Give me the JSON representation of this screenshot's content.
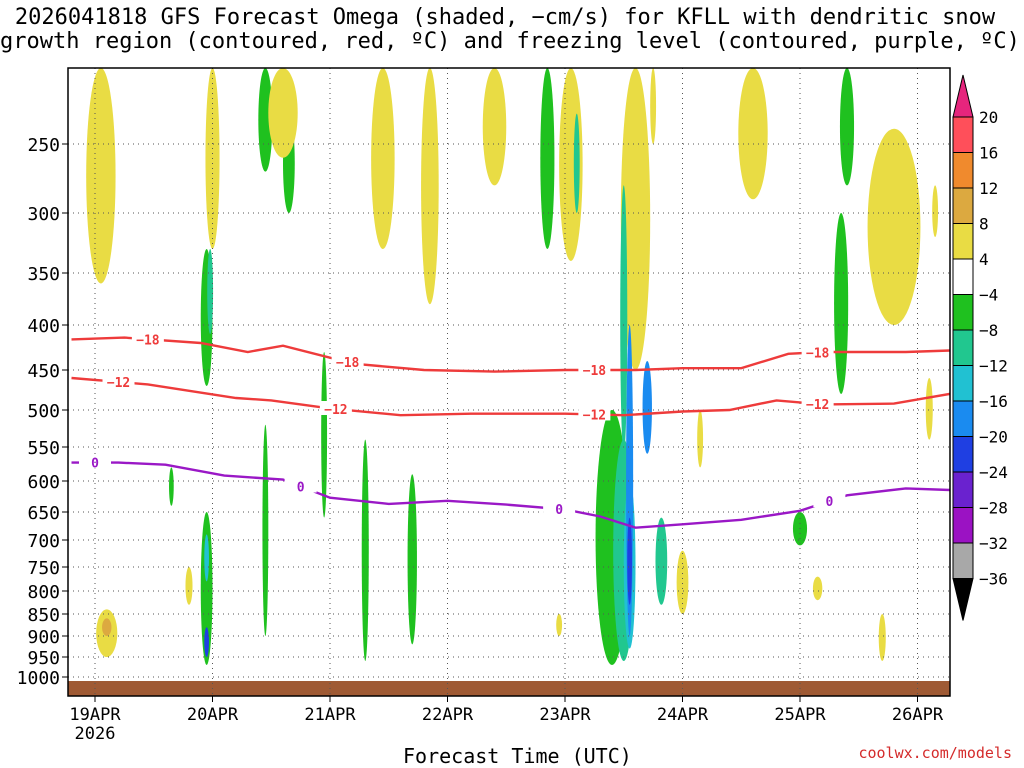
{
  "title_line1": "2026041818 GFS Forecast Omega (shaded, −cm/s) for KFLL with dendritic snow",
  "title_line2": "growth region (contoured, red, ºC) and freezing level (contoured, purple, ºC)",
  "credit": "coolwx.com/models",
  "chart_data": {
    "type": "heatmap",
    "title": "2026041818 GFS Forecast Omega (shaded, −cm/s) for KFLL with dendritic snow growth region (contoured, red, ºC) and freezing level (contoured, purple, ºC)",
    "xlabel": "Forecast Time (UTC)",
    "ylabel": "",
    "x_ticks": [
      "19APR",
      "20APR",
      "21APR",
      "22APR",
      "23APR",
      "24APR",
      "25APR",
      "26APR"
    ],
    "x_year": "2026",
    "x_range_days": [
      -0.2,
      7.35
    ],
    "y_ticks": [
      250,
      300,
      350,
      400,
      450,
      500,
      550,
      600,
      650,
      700,
      750,
      800,
      850,
      900,
      950,
      1000
    ],
    "y_range_hpa": [
      200,
      1015
    ],
    "colorbar": {
      "labels": [
        "20",
        "16",
        "12",
        "8",
        "4",
        "−4",
        "−8",
        "−12",
        "−16",
        "−20",
        "−24",
        "−28",
        "−32",
        "−36"
      ],
      "colors": [
        "#ff4f5a",
        "#f08a2d",
        "#dca940",
        "#e9dc44",
        "#ffffff",
        "#1fc11f",
        "#21c78f",
        "#21c1d2",
        "#1a8bf0",
        "#1f3fe2",
        "#6a22cf",
        "#9b12c3",
        "#a8a8a8"
      ],
      "top_arrow_color": "#e6257d",
      "bottom_arrow_color": "#000000"
    },
    "contours": [
      {
        "name": "-18",
        "color": "#ee3b3b",
        "label": "−18",
        "points": [
          [
            -0.2,
            416
          ],
          [
            0.25,
            414
          ],
          [
            0.9,
            420
          ],
          [
            1.3,
            430
          ],
          [
            1.6,
            423
          ],
          [
            2.2,
            443
          ],
          [
            2.8,
            450
          ],
          [
            3.4,
            452
          ],
          [
            4.0,
            450
          ],
          [
            4.6,
            450
          ],
          [
            5.0,
            448
          ],
          [
            5.5,
            448
          ],
          [
            5.9,
            432
          ],
          [
            6.2,
            430
          ],
          [
            6.9,
            430
          ],
          [
            7.35,
            428
          ]
        ],
        "labels_at": [
          0.45,
          2.15,
          4.25,
          6.15
        ]
      },
      {
        "name": "-12",
        "color": "#ee3b3b",
        "label": "−12",
        "points": [
          [
            -0.2,
            460
          ],
          [
            0.45,
            468
          ],
          [
            1.2,
            485
          ],
          [
            1.5,
            488
          ],
          [
            2.0,
            498
          ],
          [
            2.6,
            507
          ],
          [
            3.2,
            505
          ],
          [
            4.0,
            505
          ],
          [
            4.5,
            507
          ],
          [
            5.0,
            502
          ],
          [
            5.4,
            500
          ],
          [
            5.8,
            488
          ],
          [
            6.2,
            493
          ],
          [
            6.8,
            492
          ],
          [
            7.35,
            478
          ]
        ],
        "labels_at": [
          0.2,
          2.05,
          4.25,
          6.15
        ]
      },
      {
        "name": "0",
        "color": "#9a18c6",
        "label": "0",
        "points": [
          [
            -0.2,
            573
          ],
          [
            0.2,
            573
          ],
          [
            0.6,
            576
          ],
          [
            1.1,
            592
          ],
          [
            1.6,
            598
          ],
          [
            2.0,
            627
          ],
          [
            2.5,
            637
          ],
          [
            3.0,
            632
          ],
          [
            3.5,
            638
          ],
          [
            4.0,
            646
          ],
          [
            4.3,
            658
          ],
          [
            4.6,
            678
          ],
          [
            5.0,
            672
          ],
          [
            5.5,
            664
          ],
          [
            6.0,
            648
          ],
          [
            6.4,
            623
          ],
          [
            6.9,
            612
          ],
          [
            7.35,
            615
          ]
        ],
        "labels_at": [
          0.0,
          1.75,
          3.95,
          6.25
        ]
      }
    ],
    "omega_patches": [
      {
        "x": 0.1,
        "p1": 840,
        "p2": 950,
        "w": 0.18,
        "level": "4"
      },
      {
        "x": 0.1,
        "p1": 860,
        "p2": 900,
        "w": 0.08,
        "level": "12"
      },
      {
        "x": 0.05,
        "p1": 200,
        "p2": 360,
        "w": 0.25,
        "level": "4"
      },
      {
        "x": 0.95,
        "p1": 330,
        "p2": 470,
        "w": 0.1,
        "level": "-8"
      },
      {
        "x": 0.98,
        "p1": 330,
        "p2": 410,
        "w": 0.05,
        "level": "-12"
      },
      {
        "x": 1.0,
        "p1": 200,
        "p2": 330,
        "w": 0.12,
        "level": "4"
      },
      {
        "x": 0.95,
        "p1": 650,
        "p2": 970,
        "w": 0.1,
        "level": "-8"
      },
      {
        "x": 0.95,
        "p1": 690,
        "p2": 780,
        "w": 0.04,
        "level": "-16"
      },
      {
        "x": 0.95,
        "p1": 880,
        "p2": 950,
        "w": 0.04,
        "level": "-24"
      },
      {
        "x": 0.8,
        "p1": 750,
        "p2": 830,
        "w": 0.06,
        "level": "8"
      },
      {
        "x": 1.45,
        "p1": 200,
        "p2": 270,
        "w": 0.12,
        "level": "-8"
      },
      {
        "x": 1.65,
        "p1": 230,
        "p2": 300,
        "w": 0.1,
        "level": "-8"
      },
      {
        "x": 1.6,
        "p1": 200,
        "p2": 260,
        "w": 0.25,
        "level": "4"
      },
      {
        "x": 2.7,
        "p1": 590,
        "p2": 920,
        "w": 0.08,
        "level": "-8"
      },
      {
        "x": 1.95,
        "p1": 430,
        "p2": 660,
        "w": 0.05,
        "level": "-8"
      },
      {
        "x": 1.45,
        "p1": 520,
        "p2": 900,
        "w": 0.05,
        "level": "-8"
      },
      {
        "x": 2.3,
        "p1": 540,
        "p2": 960,
        "w": 0.06,
        "level": "-8"
      },
      {
        "x": 2.45,
        "p1": 200,
        "p2": 330,
        "w": 0.2,
        "level": "4"
      },
      {
        "x": 2.85,
        "p1": 200,
        "p2": 380,
        "w": 0.15,
        "level": "4"
      },
      {
        "x": 3.4,
        "p1": 200,
        "p2": 280,
        "w": 0.2,
        "level": "4"
      },
      {
        "x": 3.85,
        "p1": 200,
        "p2": 330,
        "w": 0.12,
        "level": "-8"
      },
      {
        "x": 4.05,
        "p1": 200,
        "p2": 340,
        "w": 0.2,
        "level": "4"
      },
      {
        "x": 4.1,
        "p1": 230,
        "p2": 300,
        "w": 0.05,
        "level": "-12"
      },
      {
        "x": 4.6,
        "p1": 200,
        "p2": 450,
        "w": 0.25,
        "level": "4"
      },
      {
        "x": 4.4,
        "p1": 500,
        "p2": 970,
        "w": 0.28,
        "level": "-8"
      },
      {
        "x": 4.5,
        "p1": 540,
        "p2": 960,
        "w": 0.18,
        "level": "-12"
      },
      {
        "x": 4.55,
        "p1": 600,
        "p2": 930,
        "w": 0.1,
        "level": "-16"
      },
      {
        "x": 4.5,
        "p1": 280,
        "p2": 560,
        "w": 0.06,
        "level": "-12"
      },
      {
        "x": 4.55,
        "p1": 400,
        "p2": 900,
        "w": 0.06,
        "level": "-20"
      },
      {
        "x": 4.55,
        "p1": 660,
        "p2": 830,
        "w": 0.04,
        "level": "-24"
      },
      {
        "x": 4.7,
        "p1": 440,
        "p2": 560,
        "w": 0.08,
        "level": "-20"
      },
      {
        "x": 4.82,
        "p1": 660,
        "p2": 830,
        "w": 0.1,
        "level": "-12"
      },
      {
        "x": 5.0,
        "p1": 720,
        "p2": 850,
        "w": 0.1,
        "level": "4"
      },
      {
        "x": 5.0,
        "p1": 740,
        "p2": 790,
        "w": 0.05,
        "level": "8"
      },
      {
        "x": 4.75,
        "p1": 200,
        "p2": 250,
        "w": 0.05,
        "level": "8"
      },
      {
        "x": 5.6,
        "p1": 200,
        "p2": 290,
        "w": 0.25,
        "level": "4"
      },
      {
        "x": 6.4,
        "p1": 200,
        "p2": 280,
        "w": 0.12,
        "level": "-8"
      },
      {
        "x": 6.35,
        "p1": 300,
        "p2": 480,
        "w": 0.12,
        "level": "-8"
      },
      {
        "x": 6.8,
        "p1": 240,
        "p2": 400,
        "w": 0.45,
        "level": "4"
      },
      {
        "x": 6.9,
        "p1": 270,
        "p2": 340,
        "w": 0.08,
        "level": "8"
      },
      {
        "x": 6.0,
        "p1": 650,
        "p2": 710,
        "w": 0.12,
        "level": "-8"
      },
      {
        "x": 6.15,
        "p1": 770,
        "p2": 820,
        "w": 0.08,
        "level": "4"
      },
      {
        "x": 6.7,
        "p1": 850,
        "p2": 960,
        "w": 0.06,
        "level": "4"
      },
      {
        "x": 7.1,
        "p1": 460,
        "p2": 540,
        "w": 0.06,
        "level": "4"
      },
      {
        "x": 0.65,
        "p1": 580,
        "p2": 640,
        "w": 0.04,
        "level": "-8"
      },
      {
        "x": 3.95,
        "p1": 850,
        "p2": 900,
        "w": 0.05,
        "level": "4"
      },
      {
        "x": 5.15,
        "p1": 500,
        "p2": 580,
        "w": 0.05,
        "level": "4"
      },
      {
        "x": 7.15,
        "p1": 280,
        "p2": 320,
        "w": 0.05,
        "level": "4"
      }
    ]
  }
}
